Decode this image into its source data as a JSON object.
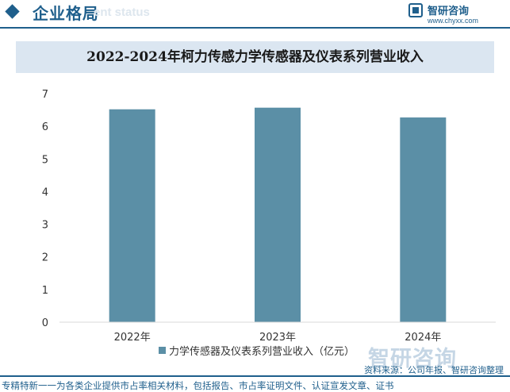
{
  "header": {
    "section_title": "企业格局",
    "section_subtitle": "ent status",
    "brand_name": "智研咨询",
    "brand_url": "www.chyxx.com"
  },
  "chart_data": {
    "type": "bar",
    "title": "2022-2024年柯力传感力学传感器及仪表系列营业收入",
    "categories": [
      "2022年",
      "2023年",
      "2024年"
    ],
    "series": [
      {
        "name": "力学传感器及仪表系列营业收入（亿元）",
        "values": [
          6.52,
          6.57,
          6.27
        ]
      }
    ],
    "ylim": [
      0,
      7
    ],
    "yticks": [
      "0",
      "1",
      "2",
      "3",
      "4",
      "5",
      "6",
      "7"
    ],
    "grid": false,
    "legend_position": "bottom",
    "colors": {
      "bar": "#5b8fa6",
      "axis": "#d9d9d9"
    }
  },
  "watermark": {
    "brand_name": "智研咨询"
  },
  "footer": {
    "source": "资料来源：公司年报、智研咨询整理",
    "tagline": "专精特新一一为各类企业提供市占率相关材料，包括报告、市占率证明文件、认证宣发文章、证书"
  }
}
